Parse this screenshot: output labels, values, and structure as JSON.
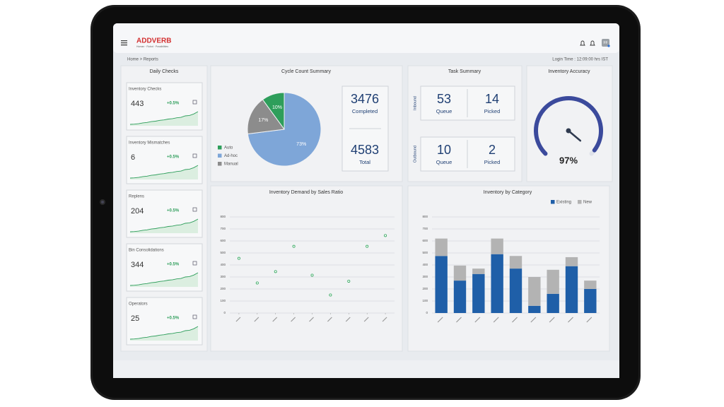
{
  "header": {
    "brand": "ADDVERB",
    "tagline": "Human · Robot · Possibilities",
    "avatar": "FF",
    "breadcrumb": "Home > Reports",
    "login_time": "Login Time : 12:09:00 hrs IST"
  },
  "daily_checks": {
    "title": "Daily Checks",
    "cards": [
      {
        "label": "Inventory Checks",
        "value": 443,
        "change": "+0.5%"
      },
      {
        "label": "Inventory Mismatches",
        "value": 6,
        "change": "+0.5%"
      },
      {
        "label": "Replens",
        "value": 204,
        "change": "+0.5%"
      },
      {
        "label": "Bin Consolidations",
        "value": 344,
        "change": "+0.5%"
      },
      {
        "label": "Operators",
        "value": 25,
        "change": "+0.5%"
      }
    ]
  },
  "cycle_count": {
    "title": "Cycle Count Summary",
    "chart": {
      "type": "pie",
      "categories": [
        "Auto",
        "Ad-hoc",
        "Manual"
      ],
      "values": [
        10,
        73,
        17
      ],
      "value_labels": [
        "10%",
        "73%",
        "17%"
      ],
      "colors": [
        "#2e9e5b",
        "#7ea6d8",
        "#8c8c8c"
      ]
    },
    "stats": [
      {
        "value": 3476,
        "label": "Completed"
      },
      {
        "value": 4583,
        "label": "Total"
      }
    ]
  },
  "task_summary": {
    "title": "Task  Summary",
    "groups": [
      {
        "name": "Inbound",
        "items": [
          {
            "value": 53,
            "label": "Queue"
          },
          {
            "value": 14,
            "label": "Picked"
          }
        ]
      },
      {
        "name": "Outbound",
        "items": [
          {
            "value": 10,
            "label": "Queue"
          },
          {
            "value": 2,
            "label": "Picked"
          }
        ]
      }
    ]
  },
  "accuracy": {
    "title": "Inventory Accuracy",
    "chart": {
      "type": "gauge",
      "value": 97,
      "value_label": "97%",
      "color": "#3b4a9c"
    }
  },
  "demand": {
    "title": "Inventory Demand by Sales Ratio",
    "chart": {
      "type": "line",
      "categories": [
        null,
        null,
        null,
        null,
        null,
        null,
        null,
        null,
        null
      ],
      "values": [
        455,
        250,
        345,
        555,
        315,
        150,
        265,
        555,
        645
      ],
      "color": "#2ea55a",
      "ylim": [
        0,
        800
      ],
      "yticks": [
        0,
        100,
        200,
        300,
        400,
        500,
        600,
        700,
        800
      ],
      "grid": true
    }
  },
  "category": {
    "title": "Inventory by Category",
    "chart": {
      "type": "stacked_bar",
      "categories": [
        null,
        null,
        null,
        null,
        null,
        null,
        null,
        null,
        null
      ],
      "series": [
        {
          "name": "Existing",
          "color": "#1f5fa8",
          "values": [
            475,
            270,
            325,
            490,
            370,
            60,
            160,
            390,
            200
          ]
        },
        {
          "name": "New",
          "color": "#b3b3b3",
          "values": [
            145,
            125,
            45,
            130,
            105,
            240,
            200,
            75,
            70
          ]
        }
      ],
      "ylim": [
        0,
        800
      ],
      "yticks": [
        0,
        100,
        200,
        300,
        400,
        500,
        600,
        700,
        800
      ],
      "grid": true,
      "legend": "top-right"
    }
  }
}
